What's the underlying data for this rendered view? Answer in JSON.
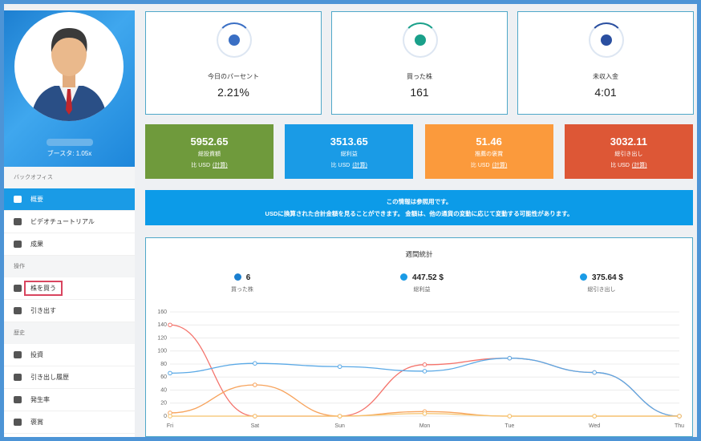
{
  "sidebar": {
    "booster": "ブースタ: 1.05x",
    "menu": [
      {
        "section": "バックオフィス",
        "items": [
          {
            "label": "概要",
            "active": true
          },
          {
            "label": "ビデオチュートリアル"
          },
          {
            "label": "成果"
          }
        ]
      },
      {
        "section": "操作",
        "items": [
          {
            "label": "株を買う",
            "highlighted": true
          },
          {
            "label": "引き出す"
          }
        ]
      },
      {
        "section": "歴史",
        "items": [
          {
            "label": "投資"
          },
          {
            "label": "引き出し履歴"
          },
          {
            "label": "発生率"
          },
          {
            "label": "褒賞"
          }
        ]
      }
    ]
  },
  "stats": [
    {
      "label": "今日のパーセント",
      "value": "2.21%"
    },
    {
      "label": "買った株",
      "value": "161"
    },
    {
      "label": "未収入金",
      "value": "4:01"
    }
  ],
  "totals": [
    {
      "value": "5952.65",
      "label": "総投資額",
      "note": "比 USD",
      "link": "(計算)",
      "color": "#6f9a3c"
    },
    {
      "value": "3513.65",
      "label": "総利益",
      "note": "比 USD",
      "link": "(計算)",
      "color": "#1a9be6"
    },
    {
      "value": "51.46",
      "label": "推薦の褒賞",
      "note": "比 USD",
      "link": "(計算)",
      "color": "#fb9a3c"
    },
    {
      "value": "3032.11",
      "label": "総引き出し",
      "note": "比 USD",
      "link": "(計算)",
      "color": "#dd5736"
    }
  ],
  "notice": [
    "この情報は参照用です。",
    "USDに換算された合計金額を見ることができます。 金額は、他の通貨の変動に応じて変動する可能性があります。"
  ],
  "chart_data": {
    "type": "line",
    "title": "週間統計",
    "summary": [
      {
        "value": "6",
        "label": "買った株"
      },
      {
        "value": "447.52 $",
        "label": "総利益"
      },
      {
        "value": "375.64 $",
        "label": "総引き出し"
      }
    ],
    "categories": [
      "Fri",
      "Sat",
      "Sun",
      "Mon",
      "Tue",
      "Wed",
      "Thu"
    ],
    "series": [
      {
        "color": "#f4736b",
        "values": [
          140,
          0,
          0,
          79,
          89,
          67,
          0
        ]
      },
      {
        "color": "#5aa9e6",
        "values": [
          66,
          81,
          76,
          69,
          89,
          67,
          0
        ]
      },
      {
        "color": "#f7a35c",
        "values": [
          5,
          48,
          0,
          7,
          0,
          0,
          0
        ]
      },
      {
        "color": "#f5c26b",
        "values": [
          0,
          0,
          0,
          4,
          0,
          0,
          0
        ]
      }
    ],
    "ylim": [
      0,
      160
    ],
    "yticks": [
      0,
      20,
      40,
      60,
      80,
      100,
      120,
      140,
      160
    ],
    "grid": true
  }
}
